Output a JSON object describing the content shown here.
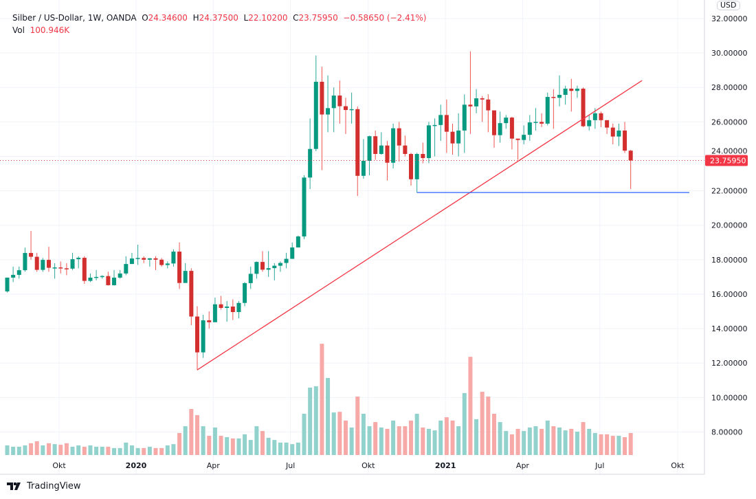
{
  "header": {
    "symbol": "Silber / US-Dollar, 1W, OANDA",
    "o_label": "O",
    "o": "24.34600",
    "h_label": "H",
    "h": "24.37500",
    "l_label": "L",
    "l": "22.10200",
    "c_label": "C",
    "c": "23.75950",
    "change": "−0.58650 (−2.41%)",
    "vol_label": "Vol",
    "vol": "100.946K"
  },
  "currency_badge": "USD",
  "last_price_label": "23.75950",
  "brand": "TradingView",
  "colors": {
    "up": "#089981",
    "down": "#f23645",
    "up_vol": "#92d2cc",
    "down_vol": "#f7a9a7",
    "trendline": "#f23645",
    "support": "#2962ff"
  },
  "chart_data": {
    "type": "candlestick",
    "title": "Silber / US-Dollar, 1W, OANDA",
    "ylabel": "USD",
    "ylim": [
      6.6,
      33.1
    ],
    "y_ticks": [
      "8.00000",
      "10.00000",
      "12.00000",
      "14.00000",
      "16.00000",
      "18.00000",
      "20.00000",
      "22.00000",
      "24.00000",
      "26.00000",
      "28.00000",
      "30.00000",
      "32.00000"
    ],
    "y_tick_values": [
      8,
      10,
      12,
      14,
      16,
      18,
      20,
      22,
      24,
      26,
      28,
      30,
      32
    ],
    "x_ticks": [
      {
        "label": "Okt",
        "week": 8.74,
        "bold": false
      },
      {
        "label": "2020",
        "week": 21.7,
        "bold": true
      },
      {
        "label": "Apr",
        "week": 34.7,
        "bold": false
      },
      {
        "label": "Jul",
        "week": 47.7,
        "bold": false
      },
      {
        "label": "Okt",
        "week": 60.8,
        "bold": false
      },
      {
        "label": "2021",
        "week": 73.8,
        "bold": true
      },
      {
        "label": "Apr",
        "week": 86.8,
        "bold": false
      },
      {
        "label": "Jul",
        "week": 99.8,
        "bold": false
      },
      {
        "label": "Okt",
        "week": 112.9,
        "bold": false
      }
    ],
    "first_open": 16.16,
    "close": [
      16.96,
      17.12,
      17.39,
      18.39,
      18.17,
      17.41,
      17.99,
      17.53,
      17.55,
      17.5,
      17.48,
      18.03,
      18.11,
      16.77,
      16.96,
      17.0,
      17.05,
      16.52,
      16.96,
      17.2,
      17.75,
      18.07,
      18.1,
      18.0,
      18.08,
      18.0,
      17.69,
      17.78,
      18.47,
      16.65,
      17.35,
      14.7,
      12.62,
      14.48,
      14.37,
      15.41,
      15.2,
      15.28,
      14.96,
      15.49,
      16.64,
      17.18,
      17.87,
      17.42,
      17.51,
      17.65,
      17.81,
      18.05,
      18.71,
      19.35,
      22.77,
      24.43,
      28.33,
      26.43,
      26.8,
      27.53,
      26.91,
      26.69,
      26.74,
      22.87,
      23.74,
      25.17,
      24.14,
      24.63,
      23.63,
      25.63,
      24.63,
      24.14,
      22.67,
      24.14,
      23.9,
      25.8,
      25.82,
      26.4,
      25.43,
      24.75,
      25.5,
      27.0,
      26.9,
      27.37,
      27.3,
      26.67,
      25.23,
      25.93,
      26.25,
      25.03,
      24.95,
      25.25,
      25.97,
      26.0,
      25.9,
      27.45,
      27.4,
      27.57,
      27.93,
      27.8,
      27.93,
      25.75,
      26.1,
      26.5,
      26.1,
      25.67,
      25.15,
      25.5,
      24.33,
      23.76
    ],
    "high": [
      16.96,
      17.6,
      17.6,
      18.7,
      19.67,
      18.4,
      18.1,
      18.75,
      17.8,
      17.9,
      17.8,
      18.4,
      18.2,
      18.2,
      17.2,
      17.4,
      17.1,
      17.3,
      17.4,
      17.4,
      18.2,
      18.4,
      18.87,
      18.2,
      18.1,
      18.2,
      18.1,
      17.9,
      18.6,
      19.0,
      17.8,
      17.5,
      15.3,
      14.8,
      15.0,
      15.8,
      15.9,
      15.6,
      15.7,
      15.6,
      16.7,
      17.6,
      17.9,
      18.5,
      18.5,
      17.8,
      17.9,
      18.4,
      19.0,
      19.4,
      22.9,
      26.2,
      29.85,
      29.2,
      28.7,
      28.0,
      28.4,
      27.4,
      27.7,
      26.9,
      25.0,
      25.2,
      25.5,
      25.4,
      24.9,
      25.9,
      26.0,
      25.2,
      24.2,
      24.2,
      24.8,
      26.0,
      26.2,
      27.0,
      27.3,
      25.9,
      26.5,
      27.6,
      30.1,
      27.9,
      27.5,
      27.6,
      26.4,
      26.6,
      26.4,
      26.3,
      25.0,
      25.8,
      26.4,
      26.8,
      26.5,
      27.7,
      27.9,
      28.7,
      28.1,
      28.5,
      28.1,
      28.0,
      26.4,
      26.8,
      26.6,
      26.1,
      25.9,
      25.9,
      26.0,
      24.375
    ],
    "low": [
      16.1,
      16.7,
      16.9,
      17.3,
      18.0,
      17.3,
      17.3,
      17.3,
      16.9,
      17.2,
      17.1,
      17.4,
      17.5,
      16.6,
      16.7,
      16.8,
      16.9,
      16.5,
      16.5,
      16.9,
      17.1,
      17.8,
      17.7,
      17.8,
      17.6,
      17.4,
      17.6,
      17.5,
      17.6,
      16.3,
      17.0,
      14.2,
      11.6,
      12.3,
      14.0,
      14.4,
      15.1,
      14.4,
      14.5,
      14.6,
      15.3,
      16.3,
      16.9,
      17.3,
      17.0,
      16.8,
      17.3,
      17.5,
      18.2,
      19.0,
      19.2,
      22.1,
      24.3,
      23.2,
      25.4,
      25.4,
      25.9,
      25.3,
      25.9,
      21.7,
      22.7,
      22.9,
      23.8,
      24.1,
      22.6,
      23.3,
      23.7,
      24.0,
      22.3,
      21.9,
      23.6,
      23.6,
      24.0,
      24.9,
      24.2,
      24.1,
      24.0,
      24.2,
      25.3,
      26.5,
      26.0,
      25.4,
      24.5,
      24.8,
      25.6,
      24.4,
      23.8,
      24.7,
      24.9,
      25.5,
      25.7,
      25.8,
      25.6,
      26.9,
      27.0,
      26.6,
      27.4,
      25.7,
      25.5,
      25.6,
      25.7,
      25.3,
      24.7,
      24.6,
      24.2,
      22.102
    ],
    "volume_k": [
      44,
      38,
      38,
      44,
      54,
      63,
      44,
      54,
      50,
      47,
      54,
      38,
      44,
      38,
      44,
      38,
      38,
      38,
      32,
      32,
      57,
      44,
      32,
      32,
      38,
      32,
      32,
      44,
      50,
      101,
      132,
      211,
      183,
      132,
      88,
      126,
      88,
      82,
      76,
      76,
      95,
      69,
      132,
      110,
      79,
      69,
      57,
      57,
      50,
      57,
      189,
      309,
      315,
      510,
      353,
      195,
      198,
      158,
      126,
      268,
      189,
      132,
      151,
      126,
      120,
      158,
      132,
      132,
      158,
      189,
      126,
      120,
      113,
      158,
      173,
      158,
      132,
      284,
      450,
      164,
      290,
      268,
      189,
      151,
      110,
      95,
      120,
      110,
      126,
      132,
      120,
      158,
      132,
      126,
      113,
      120,
      107,
      151,
      120,
      101,
      95,
      95,
      88,
      88,
      82,
      101
    ],
    "trendline": {
      "from_week": 32,
      "from_price": 11.6,
      "to_week": 106.9,
      "to_price": 28.4
    },
    "support_line": {
      "from_week": 69,
      "price": 21.9
    },
    "last_price": 23.7595
  }
}
